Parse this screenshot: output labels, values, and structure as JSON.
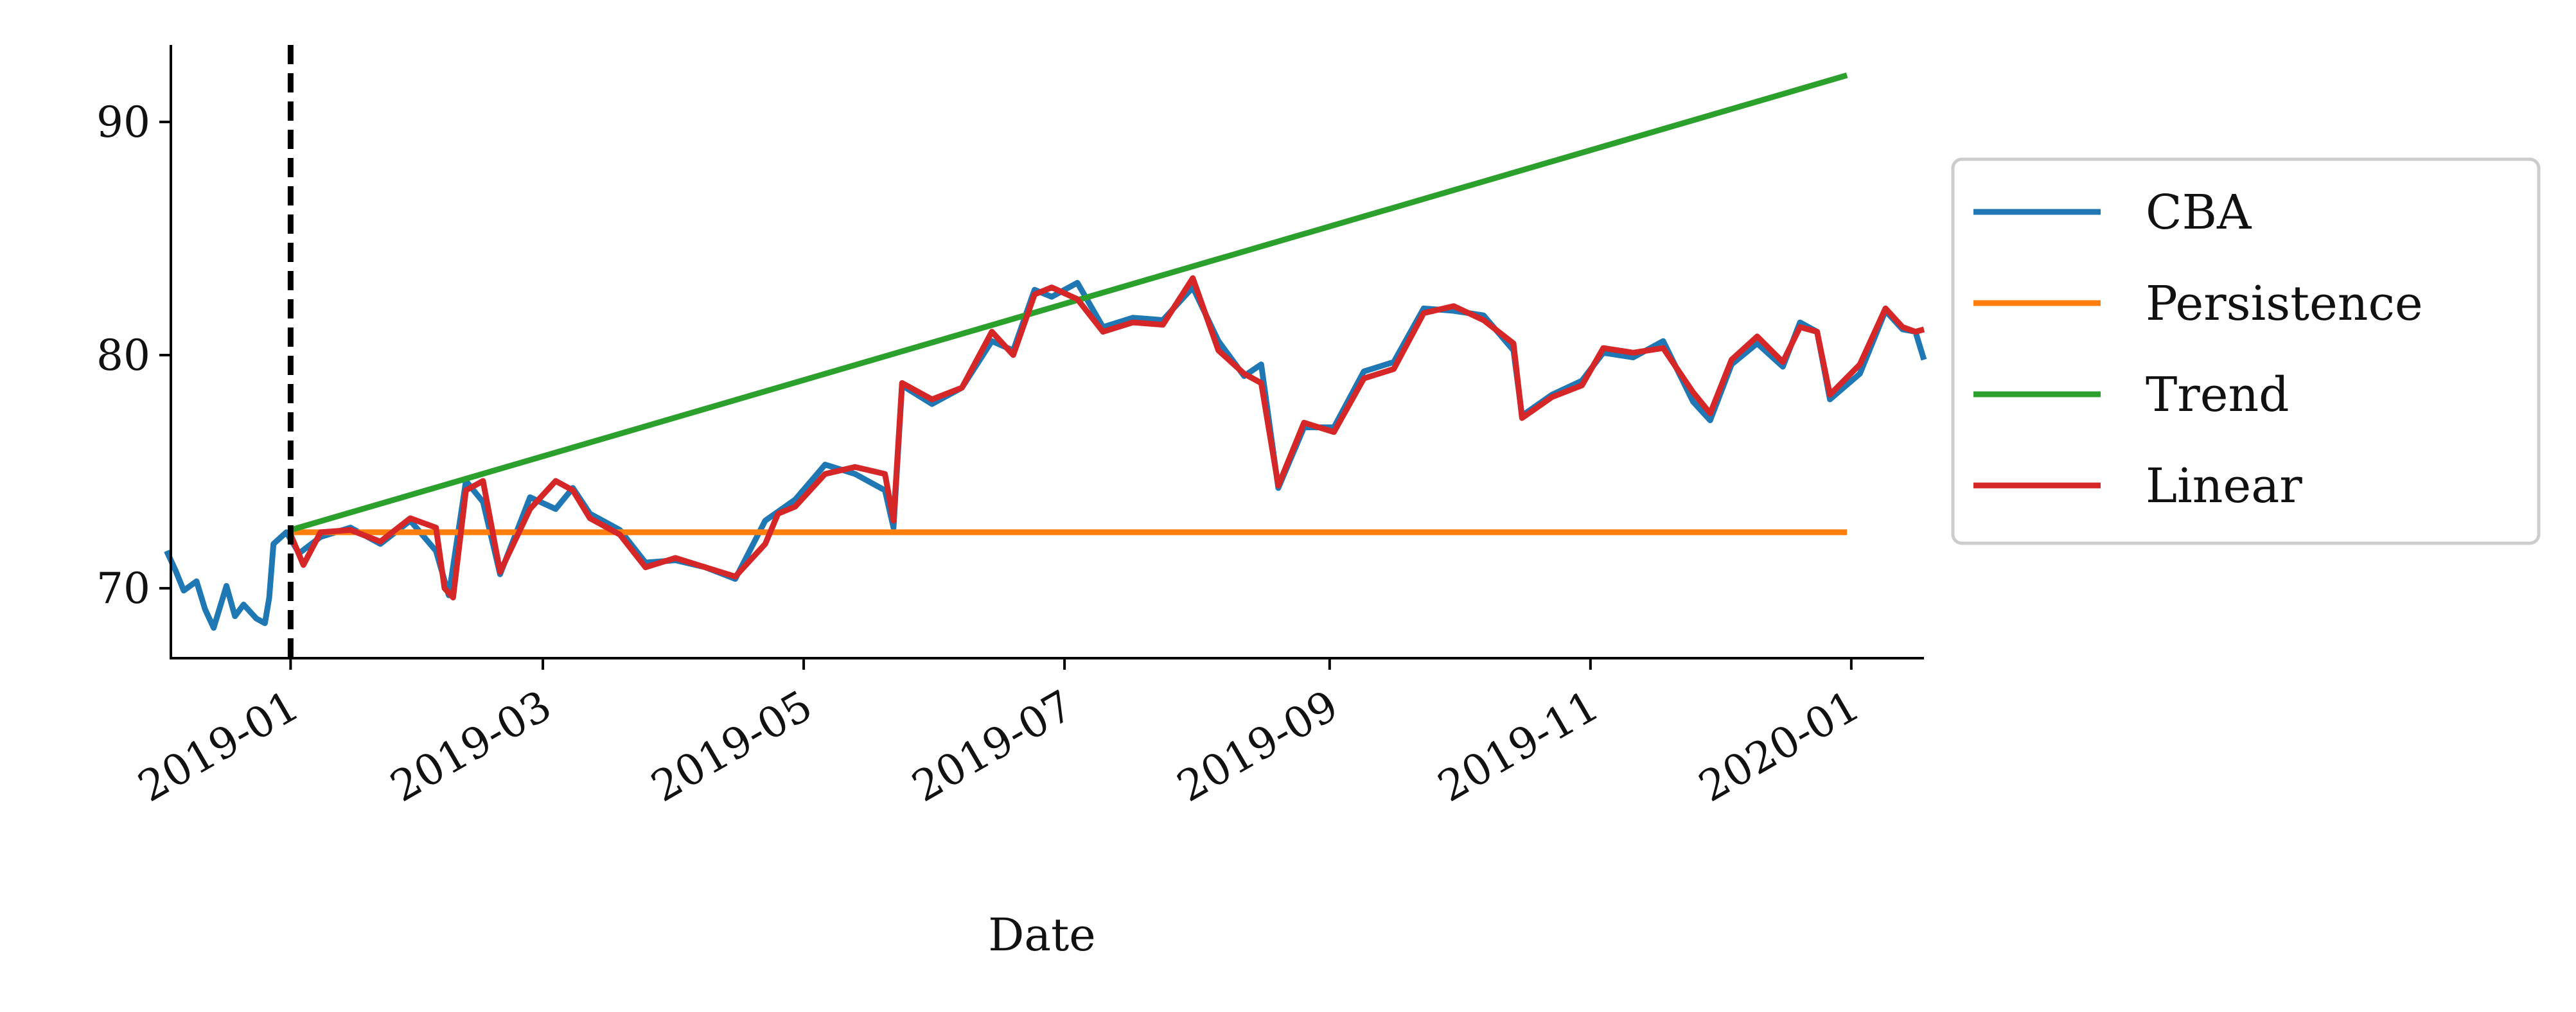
{
  "chart_data": {
    "type": "line",
    "xlabel": "Date",
    "ylabel": "",
    "x_axis": "date",
    "xlim": [
      "2018-12-04",
      "2020-01-18"
    ],
    "ylim": [
      67.0,
      93.3
    ],
    "x_ticks": [
      "2019-01",
      "2019-03",
      "2019-05",
      "2019-07",
      "2019-09",
      "2019-11",
      "2020-01"
    ],
    "y_ticks": [
      70,
      80,
      90
    ],
    "grid": false,
    "legend_position": "right-outside",
    "forecast_start": "2019-01-01",
    "series": [
      {
        "name": "CBA",
        "color": "#1f77b4",
        "points": [
          [
            "2018-12-03",
            71.6
          ],
          [
            "2018-12-05",
            70.8
          ],
          [
            "2018-12-07",
            69.9
          ],
          [
            "2018-12-10",
            70.3
          ],
          [
            "2018-12-12",
            69.1
          ],
          [
            "2018-12-14",
            68.3
          ],
          [
            "2018-12-17",
            70.1
          ],
          [
            "2018-12-19",
            68.8
          ],
          [
            "2018-12-21",
            69.3
          ],
          [
            "2018-12-24",
            68.7
          ],
          [
            "2018-12-26",
            68.5
          ],
          [
            "2018-12-27",
            69.6
          ],
          [
            "2018-12-28",
            71.9
          ],
          [
            "2018-12-31",
            72.4
          ],
          [
            "2019-01-03",
            71.5
          ],
          [
            "2019-01-08",
            72.2
          ],
          [
            "2019-01-15",
            72.6
          ],
          [
            "2019-01-22",
            71.9
          ],
          [
            "2019-01-29",
            72.9
          ],
          [
            "2019-02-04",
            71.6
          ],
          [
            "2019-02-07",
            69.7
          ],
          [
            "2019-02-11",
            74.6
          ],
          [
            "2019-02-15",
            73.7
          ],
          [
            "2019-02-19",
            70.6
          ],
          [
            "2019-02-26",
            73.9
          ],
          [
            "2019-03-04",
            73.4
          ],
          [
            "2019-03-08",
            74.3
          ],
          [
            "2019-03-12",
            73.2
          ],
          [
            "2019-03-19",
            72.5
          ],
          [
            "2019-03-25",
            71.1
          ],
          [
            "2019-04-01",
            71.2
          ],
          [
            "2019-04-08",
            70.9
          ],
          [
            "2019-04-15",
            70.4
          ],
          [
            "2019-04-22",
            72.9
          ],
          [
            "2019-04-29",
            73.8
          ],
          [
            "2019-05-06",
            75.3
          ],
          [
            "2019-05-13",
            74.9
          ],
          [
            "2019-05-20",
            74.2
          ],
          [
            "2019-05-22",
            72.6
          ],
          [
            "2019-05-24",
            78.7
          ],
          [
            "2019-05-31",
            77.9
          ],
          [
            "2019-06-07",
            78.6
          ],
          [
            "2019-06-14",
            80.6
          ],
          [
            "2019-06-19",
            80.2
          ],
          [
            "2019-06-24",
            82.8
          ],
          [
            "2019-06-28",
            82.5
          ],
          [
            "2019-07-04",
            83.1
          ],
          [
            "2019-07-10",
            81.2
          ],
          [
            "2019-07-17",
            81.6
          ],
          [
            "2019-07-24",
            81.5
          ],
          [
            "2019-07-31",
            82.9
          ],
          [
            "2019-08-06",
            80.6
          ],
          [
            "2019-08-12",
            79.1
          ],
          [
            "2019-08-16",
            79.6
          ],
          [
            "2019-08-20",
            74.3
          ],
          [
            "2019-08-26",
            76.9
          ],
          [
            "2019-09-02",
            76.9
          ],
          [
            "2019-09-09",
            79.3
          ],
          [
            "2019-09-16",
            79.7
          ],
          [
            "2019-09-23",
            82.0
          ],
          [
            "2019-09-30",
            81.9
          ],
          [
            "2019-10-07",
            81.7
          ],
          [
            "2019-10-14",
            80.2
          ],
          [
            "2019-10-16",
            77.4
          ],
          [
            "2019-10-23",
            78.3
          ],
          [
            "2019-10-30",
            78.9
          ],
          [
            "2019-11-04",
            80.1
          ],
          [
            "2019-11-11",
            79.9
          ],
          [
            "2019-11-18",
            80.6
          ],
          [
            "2019-11-25",
            78.0
          ],
          [
            "2019-11-29",
            77.2
          ],
          [
            "2019-12-04",
            79.6
          ],
          [
            "2019-12-10",
            80.5
          ],
          [
            "2019-12-16",
            79.5
          ],
          [
            "2019-12-20",
            81.4
          ],
          [
            "2019-12-24",
            81.0
          ],
          [
            "2019-12-27",
            78.1
          ],
          [
            "2020-01-03",
            79.2
          ],
          [
            "2020-01-09",
            81.9
          ],
          [
            "2020-01-13",
            81.1
          ],
          [
            "2020-01-16",
            81.0
          ],
          [
            "2020-01-18",
            79.8
          ]
        ]
      },
      {
        "name": "Persistence",
        "color": "#ff7f0e",
        "points": [
          [
            "2019-01-01",
            72.4
          ],
          [
            "2019-12-31",
            72.4
          ]
        ]
      },
      {
        "name": "Trend",
        "color": "#2ca02c",
        "points": [
          [
            "2019-01-01",
            72.5
          ],
          [
            "2019-12-31",
            92.0
          ]
        ]
      },
      {
        "name": "Linear",
        "color": "#d62728",
        "points": [
          [
            "2019-01-01",
            72.3
          ],
          [
            "2019-01-04",
            71.0
          ],
          [
            "2019-01-08",
            72.4
          ],
          [
            "2019-01-15",
            72.5
          ],
          [
            "2019-01-22",
            72.0
          ],
          [
            "2019-01-29",
            73.0
          ],
          [
            "2019-02-04",
            72.6
          ],
          [
            "2019-02-06",
            70.0
          ],
          [
            "2019-02-08",
            69.6
          ],
          [
            "2019-02-11",
            74.2
          ],
          [
            "2019-02-15",
            74.6
          ],
          [
            "2019-02-19",
            70.7
          ],
          [
            "2019-02-26",
            73.4
          ],
          [
            "2019-03-04",
            74.6
          ],
          [
            "2019-03-08",
            74.2
          ],
          [
            "2019-03-12",
            73.0
          ],
          [
            "2019-03-19",
            72.3
          ],
          [
            "2019-03-25",
            70.9
          ],
          [
            "2019-04-01",
            71.3
          ],
          [
            "2019-04-08",
            70.9
          ],
          [
            "2019-04-15",
            70.5
          ],
          [
            "2019-04-22",
            71.9
          ],
          [
            "2019-04-25",
            73.2
          ],
          [
            "2019-04-29",
            73.5
          ],
          [
            "2019-05-06",
            74.9
          ],
          [
            "2019-05-13",
            75.2
          ],
          [
            "2019-05-20",
            74.9
          ],
          [
            "2019-05-22",
            72.9
          ],
          [
            "2019-05-24",
            78.8
          ],
          [
            "2019-05-31",
            78.1
          ],
          [
            "2019-06-07",
            78.6
          ],
          [
            "2019-06-14",
            81.0
          ],
          [
            "2019-06-19",
            80.0
          ],
          [
            "2019-06-24",
            82.6
          ],
          [
            "2019-06-28",
            82.9
          ],
          [
            "2019-07-04",
            82.4
          ],
          [
            "2019-07-10",
            81.0
          ],
          [
            "2019-07-17",
            81.4
          ],
          [
            "2019-07-24",
            81.3
          ],
          [
            "2019-07-31",
            83.3
          ],
          [
            "2019-08-06",
            80.2
          ],
          [
            "2019-08-12",
            79.2
          ],
          [
            "2019-08-16",
            78.8
          ],
          [
            "2019-08-20",
            74.4
          ],
          [
            "2019-08-26",
            77.1
          ],
          [
            "2019-09-02",
            76.7
          ],
          [
            "2019-09-09",
            79.0
          ],
          [
            "2019-09-16",
            79.4
          ],
          [
            "2019-09-23",
            81.8
          ],
          [
            "2019-09-30",
            82.1
          ],
          [
            "2019-10-07",
            81.5
          ],
          [
            "2019-10-14",
            80.5
          ],
          [
            "2019-10-16",
            77.3
          ],
          [
            "2019-10-23",
            78.2
          ],
          [
            "2019-10-30",
            78.7
          ],
          [
            "2019-11-04",
            80.3
          ],
          [
            "2019-11-11",
            80.1
          ],
          [
            "2019-11-18",
            80.3
          ],
          [
            "2019-11-25",
            78.4
          ],
          [
            "2019-11-29",
            77.5
          ],
          [
            "2019-12-04",
            79.8
          ],
          [
            "2019-12-10",
            80.8
          ],
          [
            "2019-12-16",
            79.7
          ],
          [
            "2019-12-20",
            81.2
          ],
          [
            "2019-12-24",
            81.0
          ],
          [
            "2019-12-27",
            78.3
          ],
          [
            "2020-01-03",
            79.6
          ],
          [
            "2020-01-09",
            82.0
          ],
          [
            "2020-01-13",
            81.2
          ],
          [
            "2020-01-16",
            81.0
          ],
          [
            "2020-01-18",
            81.1
          ]
        ]
      }
    ]
  }
}
